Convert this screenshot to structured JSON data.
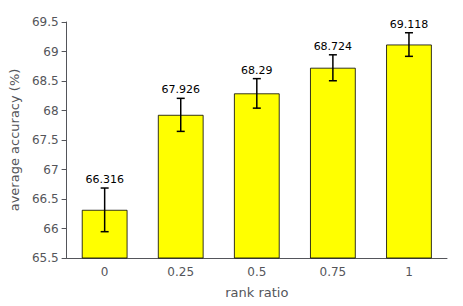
{
  "chart_data": {
    "type": "bar",
    "categories": [
      "0",
      "0.25",
      "0.5",
      "0.75",
      "1"
    ],
    "values": [
      66.316,
      67.926,
      68.29,
      68.724,
      69.118
    ],
    "errors": [
      0.37,
      0.28,
      0.25,
      0.22,
      0.2
    ],
    "color": "#ffff00",
    "xlabel": "rank ratio",
    "ylabel": "average accuracy (%)",
    "ylim": [
      65.5,
      69.5
    ],
    "yticks": [
      65.5,
      66,
      66.5,
      67,
      67.5,
      68,
      68.5,
      69,
      69.5
    ],
    "data_labels": true,
    "grid": false
  }
}
